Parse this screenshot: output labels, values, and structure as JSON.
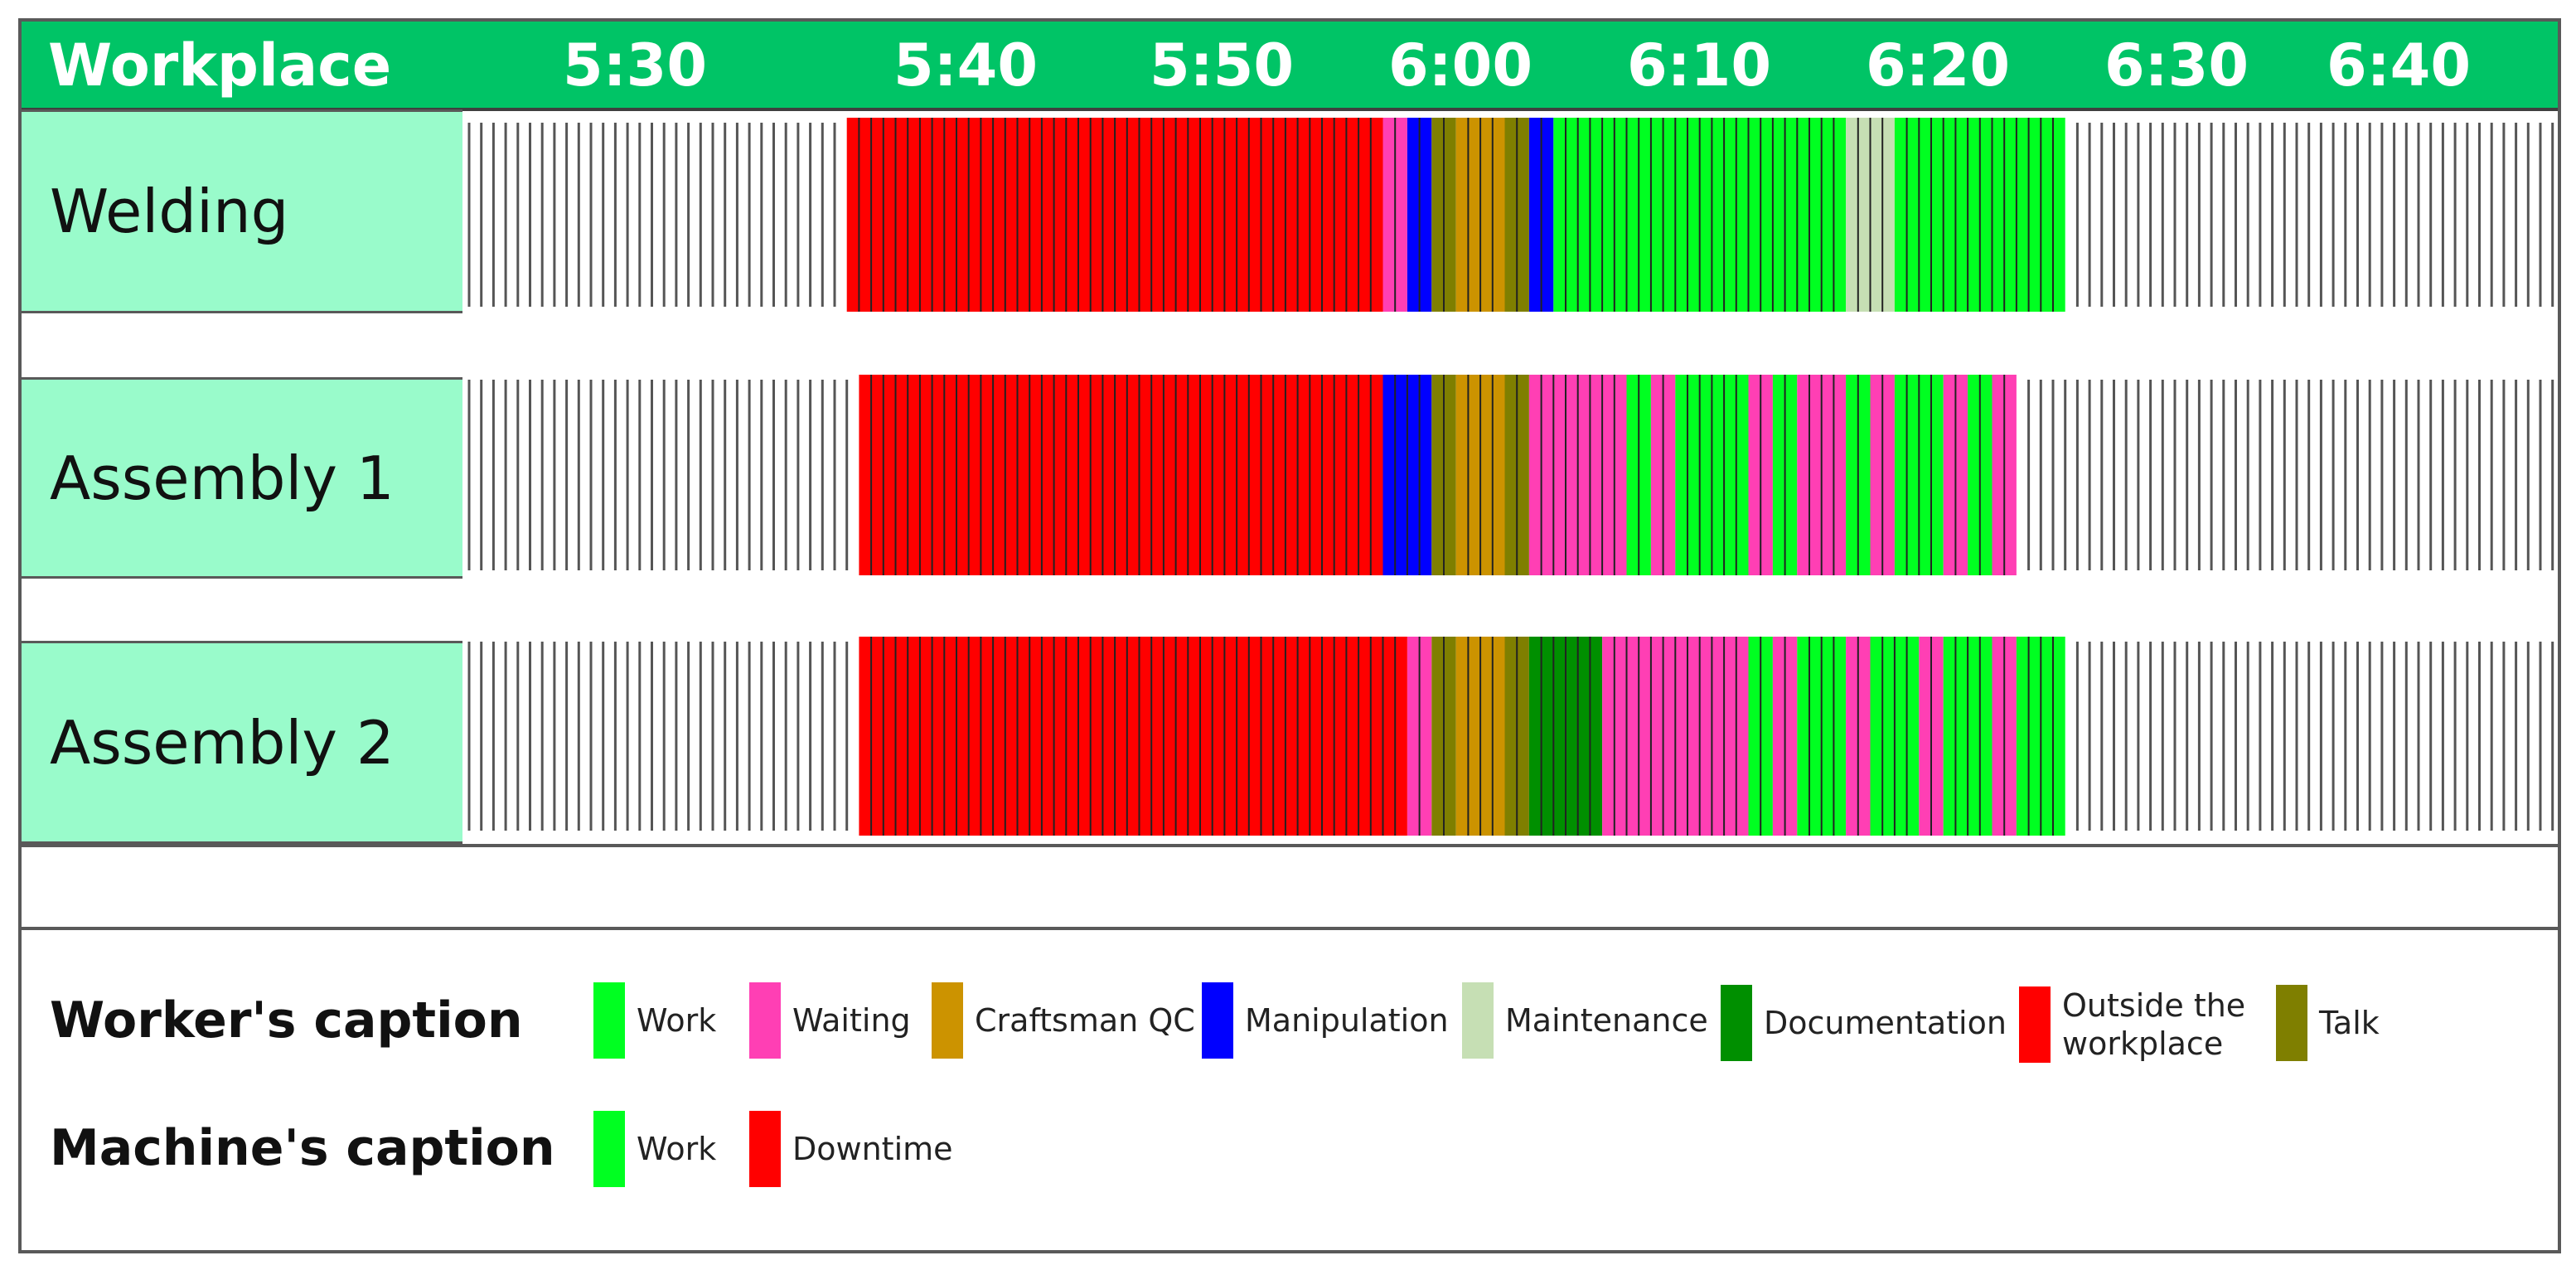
{
  "chart_data": {
    "type": "gantt",
    "title": "Workplace",
    "unit_minutes": 0.5,
    "x_ticks": [
      "5:30",
      "5:40",
      "5:50",
      "6:00",
      "6:10",
      "6:20",
      "6:30",
      "6:40"
    ],
    "x_range_minutes_after_5_20": [
      0,
      85.5
    ],
    "rows": [
      {
        "name": "Welding",
        "idle_start": 0,
        "active_start": 15.5,
        "segments": [
          {
            "state": "Outside the workplace",
            "start": 15.5,
            "end": 37.5
          },
          {
            "state": "Waiting",
            "start": 37.5,
            "end": 38.5
          },
          {
            "state": "Manipulation",
            "start": 38.5,
            "end": 39.5
          },
          {
            "state": "Talk",
            "start": 39.5,
            "end": 40.5
          },
          {
            "state": "Craftsman QC",
            "start": 40.5,
            "end": 42.5
          },
          {
            "state": "Talk",
            "start": 42.5,
            "end": 43.5
          },
          {
            "state": "Manipulation",
            "start": 43.5,
            "end": 44.5
          },
          {
            "state": "Work",
            "start": 44.5,
            "end": 56.5
          },
          {
            "state": "Maintenance",
            "start": 56.5,
            "end": 58.5
          },
          {
            "state": "Work",
            "start": 58.5,
            "end": 65.5
          }
        ],
        "idle_end": 85.5
      },
      {
        "name": "Assembly 1",
        "idle_start": 0,
        "active_start": 16,
        "segments": [
          {
            "state": "Outside the workplace",
            "start": 16,
            "end": 37.5
          },
          {
            "state": "Manipulation",
            "start": 37.5,
            "end": 39.5
          },
          {
            "state": "Talk",
            "start": 39.5,
            "end": 40.5
          },
          {
            "state": "Craftsman QC",
            "start": 40.5,
            "end": 42.5
          },
          {
            "state": "Talk",
            "start": 42.5,
            "end": 43.5
          },
          {
            "state": "Waiting",
            "start": 43.5,
            "end": 47.5
          },
          {
            "state": "Work",
            "start": 47.5,
            "end": 48.5
          },
          {
            "state": "Waiting",
            "start": 48.5,
            "end": 49.5
          },
          {
            "state": "Work",
            "start": 49.5,
            "end": 52.5
          },
          {
            "state": "Waiting",
            "start": 52.5,
            "end": 53.5
          },
          {
            "state": "Work",
            "start": 53.5,
            "end": 54.5
          },
          {
            "state": "Waiting",
            "start": 54.5,
            "end": 56.5
          },
          {
            "state": "Work",
            "start": 56.5,
            "end": 57.5
          },
          {
            "state": "Waiting",
            "start": 57.5,
            "end": 58.5
          },
          {
            "state": "Work",
            "start": 58.5,
            "end": 60.5
          },
          {
            "state": "Waiting",
            "start": 60.5,
            "end": 61.5
          },
          {
            "state": "Work",
            "start": 61.5,
            "end": 62.5
          },
          {
            "state": "Waiting",
            "start": 62.5,
            "end": 63.5
          }
        ],
        "idle_end": 85.5
      },
      {
        "name": "Assembly 2",
        "idle_start": 0,
        "active_start": 16,
        "segments": [
          {
            "state": "Outside the workplace",
            "start": 16,
            "end": 38.5
          },
          {
            "state": "Waiting",
            "start": 38.5,
            "end": 39.5
          },
          {
            "state": "Talk",
            "start": 39.5,
            "end": 40.5
          },
          {
            "state": "Craftsman QC",
            "start": 40.5,
            "end": 42.5
          },
          {
            "state": "Talk",
            "start": 42.5,
            "end": 43.5
          },
          {
            "state": "Documentation",
            "start": 43.5,
            "end": 46.5
          },
          {
            "state": "Waiting",
            "start": 46.5,
            "end": 52.5
          },
          {
            "state": "Work",
            "start": 52.5,
            "end": 53.5
          },
          {
            "state": "Waiting",
            "start": 53.5,
            "end": 54.5
          },
          {
            "state": "Work",
            "start": 54.5,
            "end": 56.5
          },
          {
            "state": "Waiting",
            "start": 56.5,
            "end": 57.5
          },
          {
            "state": "Work",
            "start": 57.5,
            "end": 59.5
          },
          {
            "state": "Waiting",
            "start": 59.5,
            "end": 60.5
          },
          {
            "state": "Work",
            "start": 60.5,
            "end": 62.5
          },
          {
            "state": "Waiting",
            "start": 62.5,
            "end": 63.5
          },
          {
            "state": "Work",
            "start": 63.5,
            "end": 65.5
          }
        ],
        "idle_end": 85.5
      }
    ],
    "legend": {
      "worker": {
        "title": "Worker's caption",
        "items": [
          {
            "label": "Work",
            "color": "#00ff21"
          },
          {
            "label": "Waiting",
            "color": "#ff3fb4"
          },
          {
            "label": "Craftsman QC",
            "color": "#cc9300"
          },
          {
            "label": "Manipulation",
            "color": "#0000ff"
          },
          {
            "label": "Maintenance",
            "color": "#c6dfb4"
          },
          {
            "label": "Documentation",
            "color": "#008f00"
          },
          {
            "label": "Outside the\nworkplace",
            "color": "#ff0000"
          },
          {
            "label": "Talk",
            "color": "#7f7f00"
          }
        ]
      },
      "machine": {
        "title": "Machine's caption",
        "items": [
          {
            "label": "Work",
            "color": "#00ff21"
          },
          {
            "label": "Downtime",
            "color": "#ff0000"
          }
        ]
      }
    }
  },
  "colors": {
    "header_bg": "#00c466",
    "row_label_bg": "#99fbcb",
    "Work": "#00ff21",
    "Waiting": "#ff3fb4",
    "Craftsman QC": "#cc9300",
    "Manipulation": "#0000ff",
    "Maintenance": "#c6dfb4",
    "Documentation": "#008f00",
    "Outside the workplace": "#ff0000",
    "Talk": "#7f7f00"
  }
}
